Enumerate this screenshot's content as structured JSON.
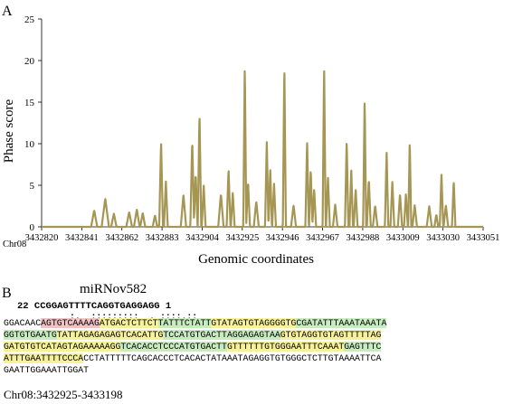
{
  "panels": {
    "a_label": "A",
    "b_label": "B"
  },
  "chart_data": {
    "type": "line",
    "title": "",
    "xlabel": "Genomic coordinates",
    "ylabel": "Phase score",
    "chromosome_label": "Chr08",
    "line_color": "#a69654",
    "ylim": [
      0,
      25
    ],
    "yticks": [
      0,
      5,
      10,
      15,
      20,
      25
    ],
    "xlim": [
      3432820,
      3433051
    ],
    "xticks": [
      "3432820",
      "3432841",
      "3432862",
      "3432883",
      "3432904",
      "3432925",
      "3432946",
      "3432967",
      "3432988",
      "3433009",
      "3433030",
      "3433051"
    ],
    "grid": false,
    "peaks": [
      {
        "x": 3432847.5,
        "y": 2.0,
        "w": 1.6
      },
      {
        "x": 3432853.3,
        "y": 3.4,
        "w": 1.9
      },
      {
        "x": 3432857.8,
        "y": 1.6,
        "w": 1.4
      },
      {
        "x": 3432865.8,
        "y": 1.8,
        "w": 1.5
      },
      {
        "x": 3432869.8,
        "y": 2.1,
        "w": 1.5
      },
      {
        "x": 3432872.9,
        "y": 1.7,
        "w": 1.3
      },
      {
        "x": 3432879.3,
        "y": 1.4,
        "w": 1.2
      },
      {
        "x": 3432882.5,
        "y": 10.3,
        "w": 1.0
      },
      {
        "x": 3432885.0,
        "y": 5.5,
        "w": 1.0
      },
      {
        "x": 3432894.2,
        "y": 3.9,
        "w": 1.4
      },
      {
        "x": 3432898.8,
        "y": 10.5,
        "w": 1.0
      },
      {
        "x": 3432900.6,
        "y": 6.5,
        "w": 1.0
      },
      {
        "x": 3432902.6,
        "y": 14.0,
        "w": 0.9
      },
      {
        "x": 3432904.8,
        "y": 5.0,
        "w": 1.0
      },
      {
        "x": 3432913.8,
        "y": 4.0,
        "w": 1.4
      },
      {
        "x": 3432917.8,
        "y": 7.0,
        "w": 1.0
      },
      {
        "x": 3432920.0,
        "y": 4.1,
        "w": 1.0
      },
      {
        "x": 3432926.3,
        "y": 19.7,
        "w": 0.8
      },
      {
        "x": 3432928.0,
        "y": 5.5,
        "w": 1.0
      },
      {
        "x": 3432932.3,
        "y": 3.1,
        "w": 1.3
      },
      {
        "x": 3432937.8,
        "y": 10.3,
        "w": 0.9
      },
      {
        "x": 3432939.6,
        "y": 7.0,
        "w": 0.9
      },
      {
        "x": 3432941.6,
        "y": 5.2,
        "w": 1.0
      },
      {
        "x": 3432947.0,
        "y": 19.7,
        "w": 0.8
      },
      {
        "x": 3432951.8,
        "y": 2.6,
        "w": 1.3
      },
      {
        "x": 3432958.9,
        "y": 10.4,
        "w": 0.9
      },
      {
        "x": 3432960.8,
        "y": 7.0,
        "w": 0.9
      },
      {
        "x": 3432962.6,
        "y": 4.6,
        "w": 1.0
      },
      {
        "x": 3432967.8,
        "y": 19.7,
        "w": 0.8
      },
      {
        "x": 3432969.8,
        "y": 6.0,
        "w": 1.0
      },
      {
        "x": 3432973.6,
        "y": 2.7,
        "w": 1.2
      },
      {
        "x": 3432979.6,
        "y": 10.5,
        "w": 0.9
      },
      {
        "x": 3432982.0,
        "y": 7.0,
        "w": 0.9
      },
      {
        "x": 3432984.3,
        "y": 4.6,
        "w": 1.0
      },
      {
        "x": 3432989.0,
        "y": 15.6,
        "w": 0.8
      },
      {
        "x": 3432991.2,
        "y": 5.8,
        "w": 1.0
      },
      {
        "x": 3432994.5,
        "y": 2.6,
        "w": 1.2
      },
      {
        "x": 3433000.5,
        "y": 9.0,
        "w": 0.9
      },
      {
        "x": 3433003.5,
        "y": 5.5,
        "w": 1.0
      },
      {
        "x": 3433007.5,
        "y": 4.0,
        "w": 1.1
      },
      {
        "x": 3433010.6,
        "y": 4.0,
        "w": 1.0
      },
      {
        "x": 3433012.6,
        "y": 10.4,
        "w": 0.8
      },
      {
        "x": 3433015.2,
        "y": 2.6,
        "w": 1.2
      },
      {
        "x": 3433022.8,
        "y": 2.5,
        "w": 1.3
      },
      {
        "x": 3433026.5,
        "y": 1.5,
        "w": 1.0
      },
      {
        "x": 3433029.2,
        "y": 6.4,
        "w": 0.9
      },
      {
        "x": 3433031.5,
        "y": 2.6,
        "w": 1.2
      },
      {
        "x": 3433035.6,
        "y": 5.6,
        "w": 0.9
      }
    ]
  },
  "panel_b": {
    "mirna_name": "miRNov582",
    "mirna_start": "22",
    "mirna_seq": "CCGGAGTTTTCAGGTGAGGAGG",
    "mirna_end": "1",
    "pairing": ":.  :::::::::  . ::::.::",
    "seq_lines": [
      [
        {
          "text": "GGACAAC",
          "hl": ""
        },
        {
          "text": "AGTGTCAAAAG",
          "hl": "pink"
        },
        {
          "text": "ATGACTCTTCT",
          "hl": "yellow"
        },
        {
          "text": "TATTTCTATT",
          "hl": "green"
        },
        {
          "text": "GTATAGTGTAGGGGTG",
          "hl": "yellow"
        },
        {
          "text": "CGATATTTAAATAAATA",
          "hl": "green"
        }
      ],
      [
        {
          "text": "GGTGTGAATG",
          "hl": "green"
        },
        {
          "text": "TATTAGAGAGAGTCACATTG",
          "hl": "yellow"
        },
        {
          "text": "TCCATGTGACTTAGGAGAGTAA",
          "hl": "green"
        },
        {
          "text": "GTGTAGGTGTAGTTTTTAG",
          "hl": "yellow"
        }
      ],
      [
        {
          "text": "GATGTGTCATAGTAGAAAAAGG",
          "hl": "yellow"
        },
        {
          "text": "TCACACCTCCCATGTGACTT",
          "hl": "green"
        },
        {
          "text": "GTTTTTTGTGGGAATTTCAAAT",
          "hl": "yellow"
        },
        {
          "text": "GAGTTTC",
          "hl": "green"
        }
      ],
      [
        {
          "text": "ATTTGAATTTTCCCA",
          "hl": "yellow"
        },
        {
          "text": "CCTATTTTTCAGCACCCTCACACTATAAATAGAGGTGTGGGCTCTTGTAAAATTCA",
          "hl": ""
        }
      ],
      [
        {
          "text": "GAATTGGAAATTGGAT",
          "hl": ""
        }
      ]
    ],
    "chr_coord": "Chr08:3432925-3433198"
  }
}
